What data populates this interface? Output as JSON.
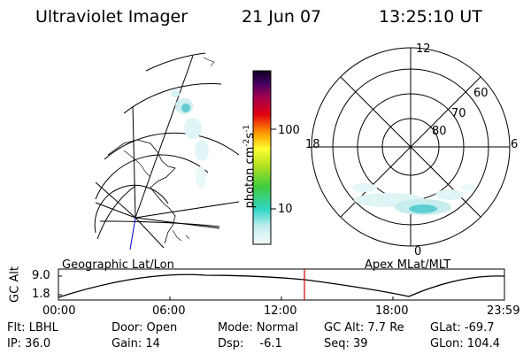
{
  "header": {
    "instrument": "Ultraviolet Imager",
    "date": "21 Jun 07",
    "time": "13:25:10 UT"
  },
  "colorbar": {
    "unit": "photon cm",
    "unit_sup1": "-2",
    "unit_mid": "s",
    "unit_sup2": "-1",
    "tick_100": "100",
    "tick_10": "10"
  },
  "polar": {
    "mlt_labels": [
      "12",
      "18",
      "6",
      "0"
    ],
    "lat_labels": [
      "60",
      "70",
      "80"
    ]
  },
  "panels": {
    "left_label": "Geographic Lat/Lon",
    "right_label": "Apex MLat/MLT"
  },
  "altitude_plot": {
    "ylabel": "GC Alt",
    "ytick_high": "9.0",
    "ytick_low": "1.8",
    "xticks": [
      "00:00",
      "06:00",
      "12:00",
      "18:00",
      "23:59"
    ],
    "marker_time": "13:25",
    "marker_color": "#d00000"
  },
  "footer": {
    "flt": "Flt: LBHL",
    "ip": "IP: 36.0",
    "door": "Door: Open",
    "gain": "Gain: 14",
    "mode": "Mode: Normal",
    "dsp": "Dsp:",
    "dsp_val": "-6.1",
    "gc_alt": "GC Alt: 7.7 Re",
    "seq": "Seq: 39",
    "glat": "GLat: -69.7",
    "glon": "GLon: 104.4"
  }
}
